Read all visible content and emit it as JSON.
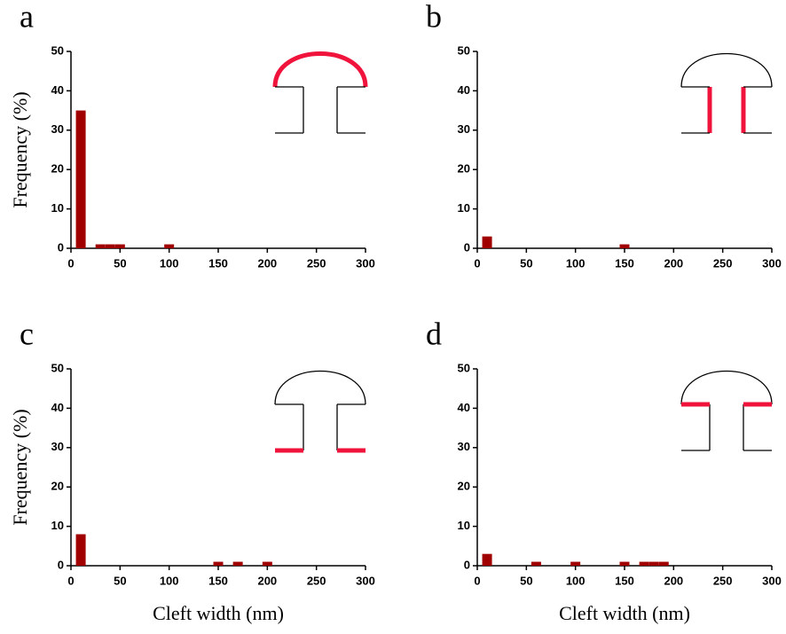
{
  "chart_data": [
    {
      "type": "bar",
      "panel_label": "a",
      "x": [
        10,
        30,
        40,
        50,
        100
      ],
      "values": [
        35,
        1,
        1,
        1,
        1
      ],
      "color": "#a00000",
      "xlim": [
        0,
        300
      ],
      "xticks": [
        0,
        50,
        100,
        150,
        200,
        250,
        300
      ],
      "ylim": [
        0,
        50
      ],
      "yticks": [
        0,
        10,
        20,
        30,
        40,
        50
      ],
      "ylabel": "Frequency (%)"
    },
    {
      "type": "bar",
      "panel_label": "b",
      "x": [
        10,
        150
      ],
      "values": [
        3,
        1
      ],
      "color": "#a00000",
      "xlim": [
        0,
        300
      ],
      "xticks": [
        0,
        50,
        100,
        150,
        200,
        250,
        300
      ],
      "ylim": [
        0,
        50
      ],
      "yticks": [
        0,
        10,
        20,
        30,
        40,
        50
      ]
    },
    {
      "type": "bar",
      "panel_label": "c",
      "x": [
        10,
        150,
        170,
        200
      ],
      "values": [
        8,
        1,
        1,
        1
      ],
      "color": "#a00000",
      "xlim": [
        0,
        300
      ],
      "xticks": [
        0,
        50,
        100,
        150,
        200,
        250,
        300
      ],
      "ylim": [
        0,
        50
      ],
      "yticks": [
        0,
        10,
        20,
        30,
        40,
        50
      ],
      "xlabel": "Cleft width (nm)",
      "ylabel": "Frequency (%)"
    },
    {
      "type": "bar",
      "panel_label": "d",
      "x": [
        10,
        60,
        100,
        150,
        170,
        180,
        190
      ],
      "values": [
        3,
        1,
        1,
        1,
        1,
        1,
        1
      ],
      "color": "#a00000",
      "xlim": [
        0,
        300
      ],
      "xticks": [
        0,
        50,
        100,
        150,
        200,
        250,
        300
      ],
      "ylim": [
        0,
        50
      ],
      "yticks": [
        0,
        10,
        20,
        30,
        40,
        50
      ],
      "xlabel": "Cleft width (nm)"
    }
  ]
}
